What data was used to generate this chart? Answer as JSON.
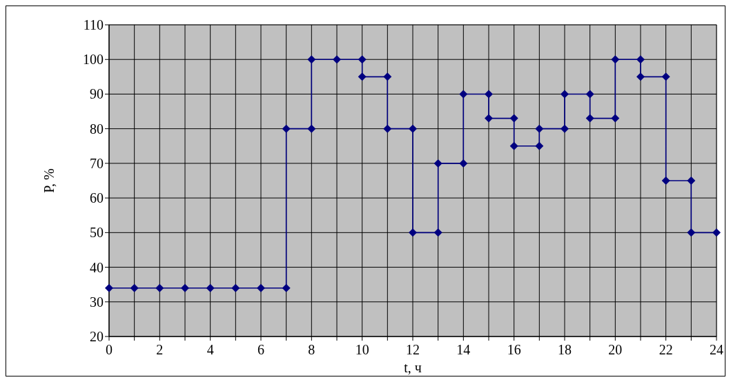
{
  "chart_data": {
    "type": "line",
    "xlabel": "t, ч",
    "ylabel": "P, %",
    "xlim": [
      0,
      24
    ],
    "xticks": [
      0,
      {
        "value": 1,
        "label": null
      },
      2,
      {
        "value": 3,
        "label": null
      },
      4,
      {
        "value": 5,
        "label": null
      },
      6,
      {
        "value": 7,
        "label": null
      },
      8,
      {
        "value": 9,
        "label": null
      },
      10,
      {
        "value": 11,
        "label": null
      },
      12,
      {
        "value": 13,
        "label": null
      },
      14,
      {
        "value": 15,
        "label": null
      },
      16,
      {
        "value": 17,
        "label": null
      },
      18,
      {
        "value": 19,
        "label": null
      },
      20,
      {
        "value": 21,
        "label": null
      },
      22,
      {
        "value": 23,
        "label": null
      },
      24
    ],
    "ylim": [
      20,
      110
    ],
    "yticks": [
      20,
      30,
      40,
      50,
      60,
      70,
      80,
      90,
      100,
      110
    ],
    "grid": true,
    "marker": "diamond",
    "line_style": "solid",
    "series": [
      {
        "color": "#000080",
        "x": [
          0,
          1,
          2,
          3,
          4,
          5,
          6,
          7,
          7,
          8,
          8,
          9,
          10,
          10,
          11,
          11,
          12,
          12,
          13,
          13,
          14,
          14,
          15,
          15,
          16,
          16,
          17,
          17,
          18,
          18,
          19,
          19,
          20,
          20,
          21,
          21,
          22,
          22,
          23,
          23,
          24
        ],
        "values": [
          34,
          34,
          34,
          34,
          34,
          34,
          34,
          34,
          80,
          80,
          100,
          100,
          100,
          95,
          95,
          80,
          80,
          50,
          50,
          70,
          70,
          90,
          90,
          83,
          83,
          75,
          75,
          80,
          80,
          90,
          90,
          83,
          83,
          100,
          100,
          95,
          95,
          65,
          65,
          50,
          50
        ]
      }
    ]
  }
}
